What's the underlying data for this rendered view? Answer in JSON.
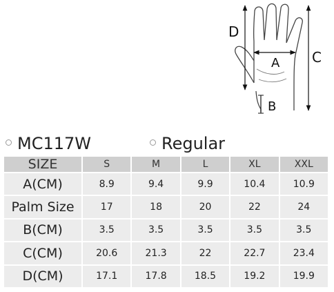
{
  "diagram": {
    "labels": {
      "a": "A",
      "b": "B",
      "c": "C",
      "d": "D"
    }
  },
  "model": "MC117W",
  "fit": "Regular",
  "table": {
    "header": [
      "SIZE",
      "S",
      "M",
      "L",
      "XL",
      "XXL"
    ],
    "rows": [
      {
        "label": "A(CM)",
        "values": [
          "8.9",
          "9.4",
          "9.9",
          "10.4",
          "10.9"
        ]
      },
      {
        "label": "Palm Size",
        "values": [
          "17",
          "18",
          "20",
          "22",
          "24"
        ]
      },
      {
        "label": "B(CM)",
        "values": [
          "3.5",
          "3.5",
          "3.5",
          "3.5",
          "3.5"
        ]
      },
      {
        "label": "C(CM)",
        "values": [
          "20.6",
          "21.3",
          "22",
          "22.7",
          "23.4"
        ]
      },
      {
        "label": "D(CM)",
        "values": [
          "17.1",
          "17.8",
          "18.5",
          "19.2",
          "19.9"
        ]
      }
    ]
  }
}
